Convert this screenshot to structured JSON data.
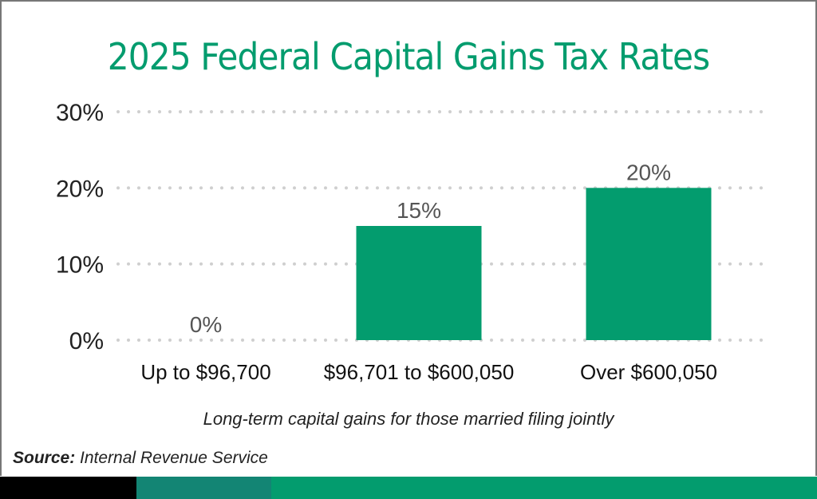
{
  "chart_data": {
    "type": "bar",
    "title": "2025 Federal Capital Gains Tax Rates",
    "subtitle": "Long-term capital gains for those married filing jointly",
    "categories": [
      "Up to $96,700",
      "$96,701 to $600,050",
      "Over $600,050"
    ],
    "values": [
      0,
      15,
      20
    ],
    "data_labels": [
      "0%",
      "15%",
      "20%"
    ],
    "ylim": [
      0,
      30
    ],
    "yticks": [
      0,
      10,
      20,
      30
    ],
    "ytick_labels": [
      "0%",
      "10%",
      "20%",
      "30%"
    ],
    "grid": "dotted horizontal",
    "bar_color": "#039c6e",
    "xlabel": "",
    "ylabel": ""
  },
  "source": {
    "label": "Source:",
    "text": "Internal Revenue Service"
  },
  "colors": {
    "accent": "#039c6e",
    "band_black": "#000000",
    "band_teal": "#138574",
    "band_green": "#039c6e"
  }
}
